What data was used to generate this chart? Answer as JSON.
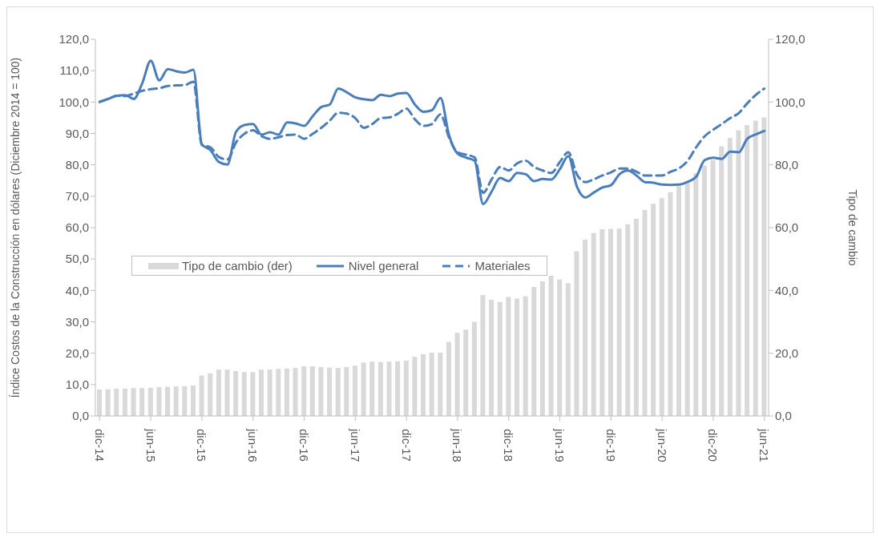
{
  "chart_data": {
    "type": "line",
    "ylabel": "Índice Costos de la Construcción en dólares (Diciembre 2014 = 100)",
    "y2label": "Tipo de cambio",
    "categories": [
      "dic-14",
      null,
      null,
      null,
      null,
      null,
      "jun-15",
      null,
      null,
      null,
      null,
      null,
      "dic-15",
      null,
      null,
      null,
      null,
      null,
      "jun-16",
      null,
      null,
      null,
      null,
      null,
      "dic-16",
      null,
      null,
      null,
      null,
      null,
      "jun-17",
      null,
      null,
      null,
      null,
      null,
      "dic-17",
      null,
      null,
      null,
      null,
      null,
      "jun-18",
      null,
      null,
      null,
      null,
      null,
      "dic-18",
      null,
      null,
      null,
      null,
      null,
      "jun-19",
      null,
      null,
      null,
      null,
      null,
      "dic-19",
      null,
      null,
      null,
      null,
      null,
      "jun-20",
      null,
      null,
      null,
      null,
      null,
      "dic-20",
      null,
      null,
      null,
      null,
      null,
      "jun-21"
    ],
    "series": [
      {
        "name": "Tipo de cambio (der)",
        "type": "bar",
        "axis": "y2",
        "color": "#d9d9d9",
        "values": [
          8.4,
          8.5,
          8.7,
          8.7,
          8.9,
          8.9,
          9.0,
          9.2,
          9.3,
          9.4,
          9.5,
          9.7,
          12.9,
          13.6,
          14.8,
          14.8,
          14.3,
          14.0,
          14.0,
          14.8,
          14.8,
          15.0,
          15.1,
          15.3,
          15.8,
          15.8,
          15.6,
          15.4,
          15.3,
          15.6,
          16.0,
          17.0,
          17.3,
          17.2,
          17.3,
          17.4,
          17.6,
          18.9,
          19.7,
          20.2,
          20.2,
          23.6,
          26.5,
          27.5,
          30.0,
          38.5,
          37.0,
          36.3,
          37.9,
          37.4,
          38.1,
          41.1,
          42.9,
          44.7,
          43.5,
          42.3,
          52.5,
          56.2,
          58.3,
          59.5,
          59.6,
          59.7,
          61.1,
          62.8,
          65.6,
          67.6,
          69.4,
          71.3,
          73.2,
          74.9,
          77.3,
          79.8,
          81.6,
          85.9,
          88.6,
          91.0,
          92.7,
          94.1,
          95.1
        ]
      },
      {
        "name": "Nivel general",
        "line_style": "solid",
        "color": "#4a7ebb",
        "values": [
          100.1,
          101,
          102,
          102.2,
          101,
          106,
          113.2,
          106.9,
          110.5,
          109.8,
          109.4,
          110.3,
          86.5,
          84.7,
          80.9,
          80.1,
          90.5,
          92.7,
          93,
          89.6,
          90.4,
          89.6,
          93.5,
          93.2,
          92.4,
          95.5,
          98.4,
          99.2,
          104.3,
          103.1,
          101.5,
          100.9,
          100.6,
          102.3,
          101.9,
          102.7,
          102.9,
          99.2,
          96.9,
          97.4,
          101.3,
          89.5,
          83.6,
          82.3,
          81.3,
          67.5,
          71.5,
          75.8,
          74.8,
          77.4,
          77,
          74.8,
          75.5,
          75.3,
          78.6,
          82.8,
          73.1,
          69.6,
          71.2,
          72.8,
          73.5,
          77,
          78.2,
          76.6,
          74.5,
          74.3,
          73.7,
          73.6,
          73.7,
          74.6,
          76.2,
          81.5,
          82.3,
          81.9,
          84.2,
          84,
          88.3,
          89.7,
          90.8
        ]
      },
      {
        "name": "Materiales",
        "line_style": "dashed",
        "color": "#4a7ebb",
        "values": [
          100,
          101,
          102,
          101.9,
          102.7,
          103.6,
          104.1,
          104.4,
          105.1,
          105.3,
          105.4,
          106.5,
          86.3,
          85.6,
          82.5,
          81.7,
          87.1,
          89.9,
          91,
          89.1,
          88.3,
          88.8,
          89.5,
          89.6,
          88.3,
          89.9,
          91.8,
          94.1,
          96.6,
          96.3,
          94.9,
          91.8,
          93,
          94.9,
          95.1,
          96.3,
          97.9,
          94.5,
          92.4,
          93,
          96.1,
          88.7,
          84,
          83.2,
          82.4,
          71.1,
          75.4,
          79.3,
          78.2,
          80.5,
          81.3,
          79.3,
          78.2,
          77.4,
          80.9,
          84,
          77,
          74.5,
          75.4,
          76.6,
          77.6,
          78.8,
          78.8,
          77.8,
          76.6,
          76.6,
          76.6,
          77.8,
          78.9,
          81.3,
          85.6,
          89.1,
          91.2,
          93,
          94.9,
          96.5,
          99.6,
          102.3,
          104.3
        ]
      }
    ],
    "ylim": [
      0,
      120
    ],
    "yticks": [
      {
        "value": 0,
        "label": "0,0"
      },
      {
        "value": 10,
        "label": "10,0"
      },
      {
        "value": 20,
        "label": "20,0"
      },
      {
        "value": 30,
        "label": "30,0"
      },
      {
        "value": 40,
        "label": "40,0"
      },
      {
        "value": 50,
        "label": "50,0"
      },
      {
        "value": 60,
        "label": "60,0"
      },
      {
        "value": 70,
        "label": "70,0"
      },
      {
        "value": 80,
        "label": "80,0"
      },
      {
        "value": 90,
        "label": "90,0"
      },
      {
        "value": 100,
        "label": "100,0"
      },
      {
        "value": 110,
        "label": "110,0"
      },
      {
        "value": 120,
        "label": "120,0"
      }
    ],
    "y2lim": [
      0,
      120
    ],
    "y2ticks": [
      {
        "value": 0,
        "label": "0,0"
      },
      {
        "value": 20,
        "label": "20,0"
      },
      {
        "value": 40,
        "label": "40,0"
      },
      {
        "value": 60,
        "label": "60,0"
      },
      {
        "value": 80,
        "label": "80,0"
      },
      {
        "value": 100,
        "label": "100,0"
      },
      {
        "value": 120,
        "label": "120,0"
      }
    ],
    "grid": false,
    "legend": "left",
    "marker": "none"
  }
}
